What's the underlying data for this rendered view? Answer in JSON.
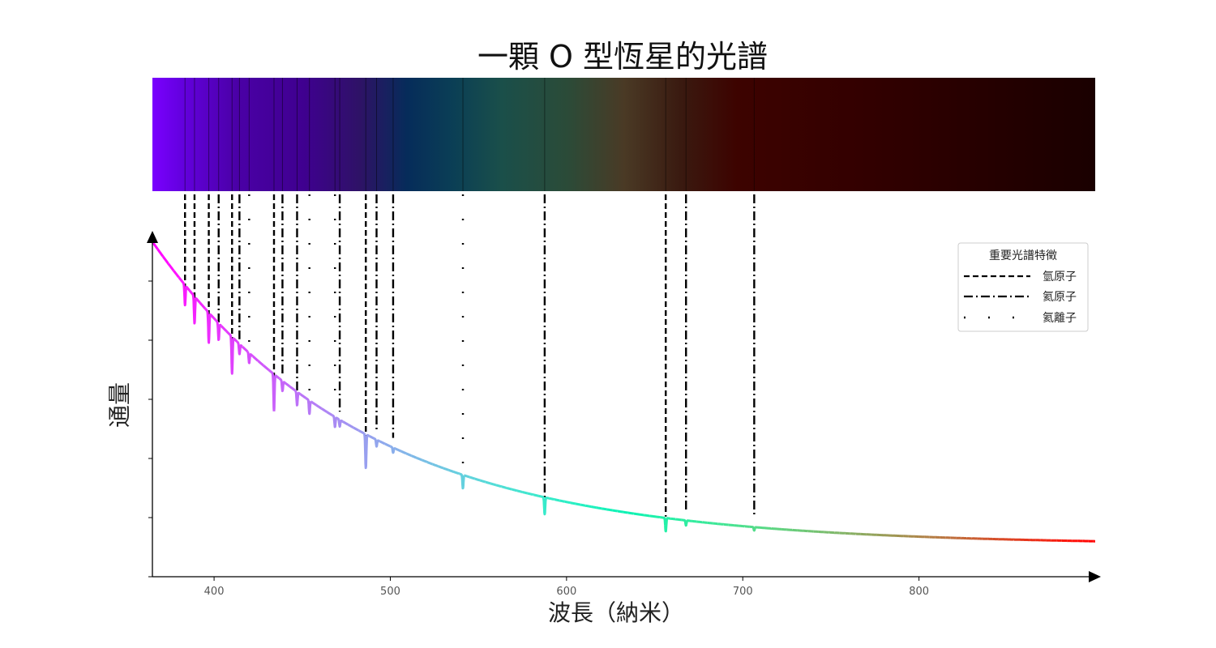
{
  "chart_data": {
    "type": "line",
    "title": "一顆 O 型恆星的光譜",
    "xlabel": "波長（納米）",
    "ylabel": "通量",
    "xlim": [
      365,
      900
    ],
    "ylim": [
      0,
      1.02
    ],
    "x_ticks": [
      400,
      500,
      600,
      700,
      800
    ],
    "continuum": {
      "baseline": 0.095,
      "amplitude": 0.9,
      "scale_nm": 120
    },
    "color_scale": "rainbow",
    "legend": {
      "title": "重要光譜特徵",
      "position": "top-right",
      "entries": [
        {
          "label": "氫原子",
          "style": "dashed"
        },
        {
          "label": "氦原子",
          "style": "dash-dot"
        },
        {
          "label": "氦離子",
          "style": "dotted"
        }
      ]
    },
    "features": [
      {
        "wavelength": 383.5,
        "element": "氫原子",
        "depth": 0.06
      },
      {
        "wavelength": 388.9,
        "element": "氫原子",
        "depth": 0.08
      },
      {
        "wavelength": 397.0,
        "element": "氫原子",
        "depth": 0.09
      },
      {
        "wavelength": 402.6,
        "element": "氦原子",
        "depth": 0.05
      },
      {
        "wavelength": 410.2,
        "element": "氫原子",
        "depth": 0.11
      },
      {
        "wavelength": 414.4,
        "element": "氦原子",
        "depth": 0.03
      },
      {
        "wavelength": 419.9,
        "element": "氦離子",
        "depth": 0.03
      },
      {
        "wavelength": 434.0,
        "element": "氫原子",
        "depth": 0.11
      },
      {
        "wavelength": 438.8,
        "element": "氦原子",
        "depth": 0.03
      },
      {
        "wavelength": 447.1,
        "element": "氦原子",
        "depth": 0.04
      },
      {
        "wavelength": 454.1,
        "element": "氦離子",
        "depth": 0.04
      },
      {
        "wavelength": 468.6,
        "element": "氦離子",
        "depth": 0.03
      },
      {
        "wavelength": 471.3,
        "element": "氦原子",
        "depth": 0.02
      },
      {
        "wavelength": 486.1,
        "element": "氫原子",
        "depth": 0.1
      },
      {
        "wavelength": 492.2,
        "element": "氦原子",
        "depth": 0.02
      },
      {
        "wavelength": 501.6,
        "element": "氦原子",
        "depth": 0.015
      },
      {
        "wavelength": 541.2,
        "element": "氦離子",
        "depth": 0.04
      },
      {
        "wavelength": 587.6,
        "element": "氦原子",
        "depth": 0.05
      },
      {
        "wavelength": 656.3,
        "element": "氫原子",
        "depth": 0.04
      },
      {
        "wavelength": 667.8,
        "element": "氦原子",
        "depth": 0.015
      },
      {
        "wavelength": 706.5,
        "element": "氦原子",
        "depth": 0.01
      }
    ]
  }
}
